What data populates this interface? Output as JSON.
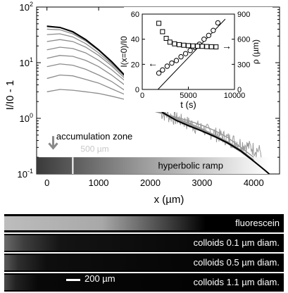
{
  "chart_data": [
    {
      "type": "line",
      "xlabel": "x (µm)",
      "ylabel": "I/I0 - 1",
      "xlim": [
        -200,
        4500
      ],
      "ylim": [
        0.1,
        100
      ],
      "yscale": "log",
      "xticks": [
        0,
        1000,
        2000,
        3000,
        4000
      ],
      "yticks": [
        "10-1",
        "100",
        "101",
        "102"
      ],
      "grid": false,
      "annotations": {
        "accumulation_zone": "accumulation zone",
        "marker_500": "500 µm",
        "hyperbolic_ramp": "hyperbolic ramp"
      },
      "fit": {
        "x": [
          0,
          250,
          500,
          750,
          1000,
          1250,
          1500,
          1750,
          2000,
          2250,
          2500,
          2750,
          3000,
          3250,
          3500,
          3750,
          4000,
          4200,
          4300
        ],
        "y": [
          45,
          43,
          36,
          26,
          17,
          10.5,
          6,
          3.4,
          2.0,
          1.25,
          0.92,
          0.73,
          0.59,
          0.47,
          0.36,
          0.26,
          0.17,
          0.12,
          0.1
        ]
      },
      "series": [
        {
          "values": [
            [
              0,
              3.0
            ],
            [
              250,
              3.3
            ],
            [
              500,
              3.2
            ],
            [
              750,
              3.0
            ],
            [
              1000,
              2.8
            ],
            [
              1250,
              2.5
            ],
            [
              1500,
              2.2
            ],
            [
              1750,
              1.8
            ],
            [
              2000,
              1.4
            ],
            [
              2250,
              1.2
            ],
            [
              2500,
              1.05
            ],
            [
              2750,
              0.9
            ],
            [
              3000,
              0.75
            ],
            [
              3250,
              0.6
            ],
            [
              3500,
              0.45
            ],
            [
              3750,
              0.3
            ],
            [
              4000,
              0.2
            ]
          ]
        },
        {
          "values": [
            [
              0,
              5.2
            ],
            [
              250,
              6.0
            ],
            [
              500,
              5.8
            ],
            [
              750,
              5.0
            ],
            [
              1000,
              4.3
            ],
            [
              1250,
              3.4
            ],
            [
              1500,
              2.7
            ],
            [
              1750,
              2.0
            ],
            [
              2000,
              1.5
            ],
            [
              2250,
              1.2
            ],
            [
              2500,
              1.0
            ],
            [
              2750,
              0.82
            ],
            [
              3000,
              0.65
            ],
            [
              3250,
              0.5
            ],
            [
              3500,
              0.38
            ],
            [
              3750,
              0.27
            ],
            [
              4000,
              0.18
            ]
          ]
        },
        {
          "values": [
            [
              0,
              8.5
            ],
            [
              250,
              9.5
            ],
            [
              500,
              9.0
            ],
            [
              750,
              7.6
            ],
            [
              1000,
              6.0
            ],
            [
              1250,
              4.6
            ],
            [
              1500,
              3.2
            ],
            [
              1750,
              2.3
            ],
            [
              2000,
              1.6
            ],
            [
              2250,
              1.2
            ],
            [
              2500,
              0.95
            ],
            [
              2750,
              0.78
            ],
            [
              3000,
              0.62
            ],
            [
              3250,
              0.48
            ],
            [
              3500,
              0.36
            ],
            [
              3750,
              0.26
            ],
            [
              4000,
              0.17
            ]
          ]
        },
        {
          "values": [
            [
              0,
              12.0
            ],
            [
              250,
              13.5
            ],
            [
              500,
              13.0
            ],
            [
              750,
              11.0
            ],
            [
              1000,
              8.5
            ],
            [
              1250,
              6.0
            ],
            [
              1500,
              4.0
            ],
            [
              1750,
              2.7
            ],
            [
              2000,
              1.8
            ],
            [
              2250,
              1.25
            ],
            [
              2500,
              0.95
            ],
            [
              2750,
              0.76
            ],
            [
              3000,
              0.6
            ],
            [
              3250,
              0.47
            ],
            [
              3500,
              0.35
            ],
            [
              3750,
              0.25
            ],
            [
              4000,
              0.17
            ]
          ]
        },
        {
          "values": [
            [
              0,
              17.0
            ],
            [
              250,
              19.0
            ],
            [
              500,
              18.0
            ],
            [
              750,
              15.0
            ],
            [
              1000,
              11.0
            ],
            [
              1250,
              7.5
            ],
            [
              1500,
              4.8
            ],
            [
              1750,
              3.0
            ],
            [
              2000,
              1.9
            ],
            [
              2250,
              1.3
            ],
            [
              2500,
              0.95
            ],
            [
              2750,
              0.75
            ],
            [
              3000,
              0.6
            ],
            [
              3250,
              0.46
            ],
            [
              3500,
              0.35
            ],
            [
              3750,
              0.25
            ],
            [
              4000,
              0.17
            ]
          ]
        },
        {
          "values": [
            [
              0,
              24.0
            ],
            [
              250,
              26.0
            ],
            [
              500,
              24.0
            ],
            [
              750,
              19.0
            ],
            [
              1000,
              13.5
            ],
            [
              1250,
              8.8
            ],
            [
              1500,
              5.3
            ],
            [
              1750,
              3.2
            ],
            [
              2000,
              2.0
            ],
            [
              2250,
              1.3
            ],
            [
              2500,
              0.95
            ],
            [
              2750,
              0.75
            ],
            [
              3000,
              0.59
            ],
            [
              3250,
              0.46
            ],
            [
              3500,
              0.35
            ],
            [
              3750,
              0.25
            ],
            [
              4000,
              0.17
            ]
          ]
        },
        {
          "values": [
            [
              0,
              32.0
            ],
            [
              250,
              33.0
            ],
            [
              500,
              29.0
            ],
            [
              750,
              22.0
            ],
            [
              1000,
              15.0
            ],
            [
              1250,
              9.5
            ],
            [
              1500,
              5.7
            ],
            [
              1750,
              3.3
            ],
            [
              2000,
              2.0
            ],
            [
              2250,
              1.3
            ],
            [
              2500,
              0.94
            ],
            [
              2750,
              0.74
            ],
            [
              3000,
              0.59
            ],
            [
              3250,
              0.46
            ],
            [
              3500,
              0.35
            ],
            [
              3750,
              0.25
            ],
            [
              4000,
              0.17
            ]
          ]
        },
        {
          "values": [
            [
              0,
              40.0
            ],
            [
              250,
              39.0
            ],
            [
              500,
              33.0
            ],
            [
              750,
              24.5
            ],
            [
              1000,
              16.5
            ],
            [
              1250,
              10.0
            ],
            [
              1500,
              5.9
            ],
            [
              1750,
              3.4
            ],
            [
              2000,
              2.0
            ],
            [
              2250,
              1.28
            ],
            [
              2500,
              0.93
            ],
            [
              2750,
              0.73
            ],
            [
              3000,
              0.59
            ],
            [
              3250,
              0.46
            ],
            [
              3500,
              0.35
            ],
            [
              3750,
              0.25
            ],
            [
              4000,
              0.17
            ]
          ]
        },
        {
          "values": [
            [
              0,
              46.0
            ],
            [
              250,
              43.0
            ],
            [
              500,
              35.0
            ],
            [
              750,
              25.5
            ],
            [
              1000,
              17.0
            ],
            [
              1250,
              10.3
            ],
            [
              1500,
              6.0
            ],
            [
              1750,
              3.4
            ],
            [
              2000,
              2.0
            ],
            [
              2250,
              1.26
            ],
            [
              2500,
              0.92
            ],
            [
              2750,
              0.73
            ],
            [
              3000,
              0.59
            ],
            [
              3250,
              0.46
            ],
            [
              3500,
              0.36
            ],
            [
              3750,
              0.26
            ],
            [
              4000,
              0.17
            ]
          ]
        }
      ]
    },
    {
      "type": "scatter",
      "inset": true,
      "xlabel": "t (s)",
      "ylabel_left": "I(x=0)/I0",
      "ylabel_right": "ρ (µm)",
      "xlim": [
        0,
        10000
      ],
      "ylim_left": [
        0,
        60
      ],
      "ylim_right": [
        0,
        900
      ],
      "xticks": [
        "0",
        "5000",
        "10000"
      ],
      "yticks_left": [
        "0",
        "20",
        "40",
        "60"
      ],
      "yticks_right": [
        "0",
        "300",
        "600",
        "900"
      ],
      "circles": {
        "axis": "left",
        "x": [
          1800,
          2200,
          2700,
          3200,
          3700,
          4200,
          4700,
          5200,
          5700,
          6200,
          6700,
          7200,
          7700,
          8200
        ],
        "y": [
          13,
          15.5,
          18.5,
          21,
          23,
          26,
          28.5,
          31,
          33.5,
          36,
          40,
          43,
          47,
          53
        ]
      },
      "squares": {
        "axis": "right",
        "x": [
          1800,
          2200,
          2600,
          3000,
          3500,
          4000,
          4500,
          5000,
          5500,
          6000,
          6500,
          7000,
          7500,
          8000
        ],
        "y": [
          790,
          690,
          610,
          565,
          545,
          535,
          528,
          523,
          520,
          517,
          515,
          512,
          510,
          508
        ]
      },
      "line": {
        "x": [
          1700,
          9000
        ],
        "y": [
          0,
          56
        ]
      },
      "arrow_left": "←",
      "arrow_right": "→"
    }
  ],
  "panels": {
    "strips": [
      {
        "label": "fluorescein"
      },
      {
        "label": "colloids 0.1 µm diam."
      },
      {
        "label": "colloids 0.5 µm diam."
      },
      {
        "label": "colloids 1.1 µm diam."
      }
    ],
    "scalebar_label": "200 µm"
  },
  "colors": {
    "fit_line": "#000000",
    "data_lines": "#8c8c8c",
    "strip_background": "#000000",
    "ramp_dark": "#3a3a3a",
    "ramp_light": "#ffffff"
  }
}
